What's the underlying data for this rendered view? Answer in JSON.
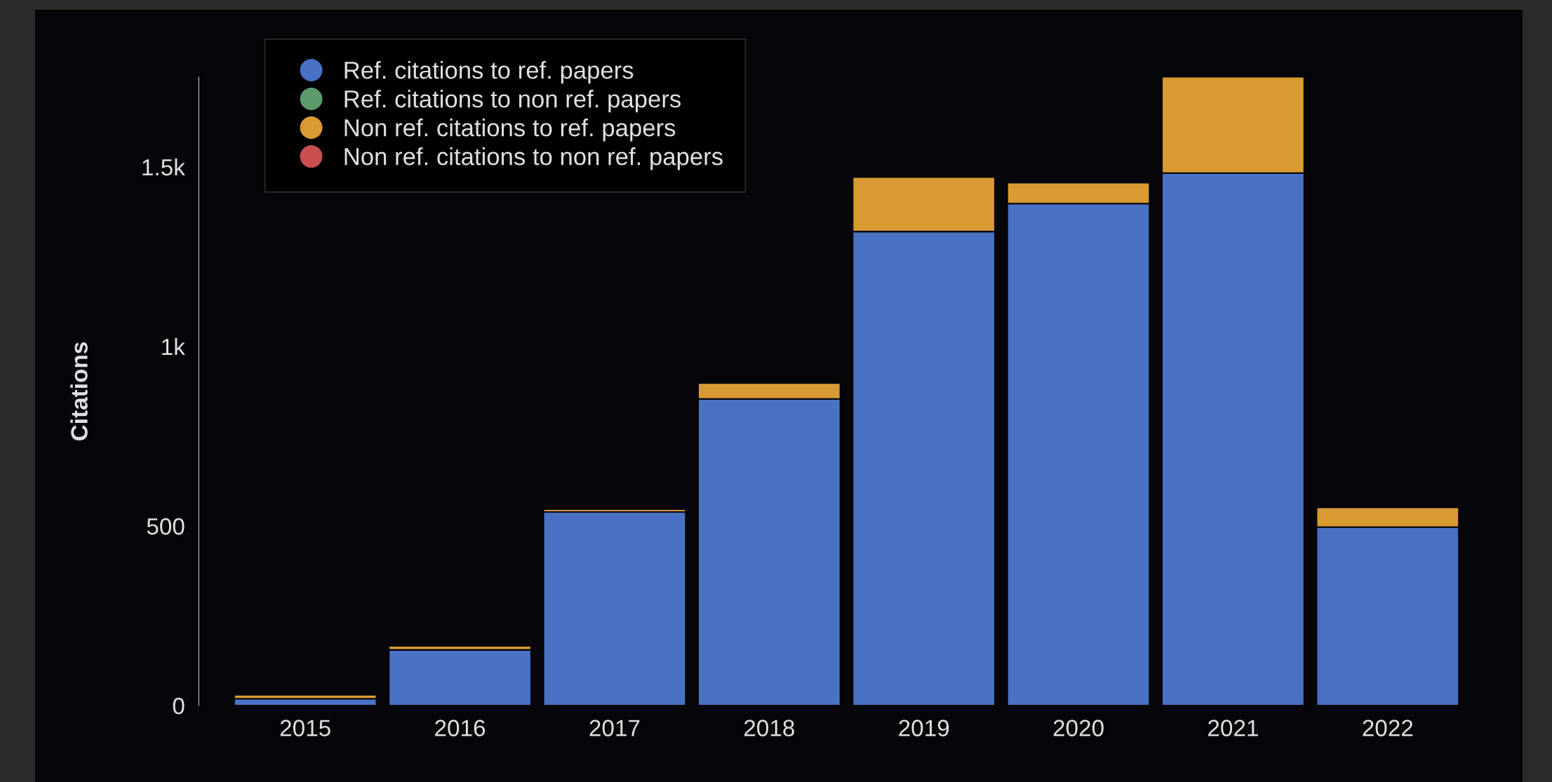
{
  "chart_data": {
    "type": "bar",
    "stacked": true,
    "ylabel": "Citations",
    "categories": [
      "2015",
      "2016",
      "2017",
      "2018",
      "2019",
      "2020",
      "2021",
      "2022"
    ],
    "series": [
      {
        "name": "Ref. citations to ref. papers",
        "color": "#4a72c4",
        "values": [
          19,
          155,
          539,
          854,
          1320,
          1398,
          1483,
          497
        ]
      },
      {
        "name": "Ref. citations to non ref. papers",
        "color": "#5b9a6b",
        "values": [
          null,
          null,
          null,
          null,
          null,
          null,
          null,
          null
        ]
      },
      {
        "name": "Non ref. citations to ref. papers",
        "color": "#d99a33",
        "values": [
          11,
          11,
          8,
          44,
          152,
          58,
          268,
          55
        ]
      },
      {
        "name": "Non ref. citations to non ref. papers",
        "color": "#c94f4f",
        "values": [
          null,
          null,
          null,
          null,
          null,
          null,
          null,
          null
        ]
      }
    ],
    "ylim": [
      0,
      1750
    ],
    "yticks": [
      0,
      500,
      {
        "value": 1000,
        "label": "1k"
      },
      {
        "value": 1500,
        "label": "1.5k"
      }
    ],
    "grid": false,
    "legend": "top left",
    "marker": "circle"
  }
}
